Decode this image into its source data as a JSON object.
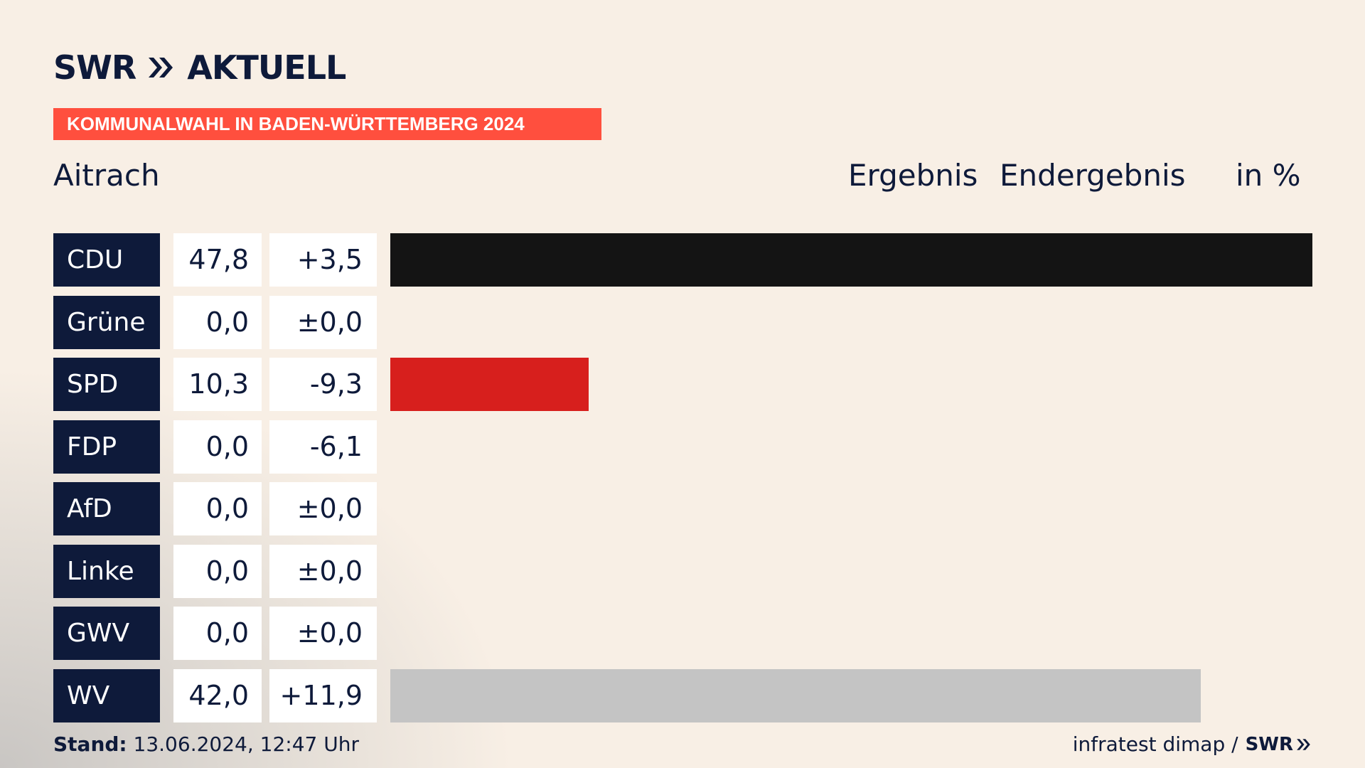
{
  "header": {
    "logo_text": "SWR",
    "logo_suffix": "AKTUELL",
    "banner": "KOMMUNALWAHL IN BADEN-WÜRTTEMBERG 2024",
    "place": "Aitrach",
    "col_ergebnis": "Ergebnis",
    "col_endergebnis": "Endergebnis",
    "col_unit": "in %"
  },
  "chart_data": {
    "type": "bar",
    "orientation": "horizontal",
    "categories": [
      "CDU",
      "Grüne",
      "SPD",
      "FDP",
      "AfD",
      "Linke",
      "GWV",
      "WV"
    ],
    "values": [
      47.8,
      0.0,
      10.3,
      0.0,
      0.0,
      0.0,
      0.0,
      42.0
    ],
    "value_labels": [
      "47,8",
      "0,0",
      "10,3",
      "0,0",
      "0,0",
      "0,0",
      "0,0",
      "42,0"
    ],
    "diff_labels": [
      "+3,5",
      "±0,0",
      "-9,3",
      "-6,1",
      "±0,0",
      "±0,0",
      "±0,0",
      "+11,9"
    ],
    "colors": [
      "#141414",
      "#46962b",
      "#d71f1d",
      "#ffed00",
      "#009ee0",
      "#be3075",
      "#c4c4c4",
      "#c4c4c4"
    ],
    "xlim": [
      0,
      47.8
    ]
  },
  "footer": {
    "stand_label": "Stand:",
    "stand_value": "13.06.2024, 12:47 Uhr",
    "source": "infratest dimap /",
    "source_logo": "SWR"
  }
}
